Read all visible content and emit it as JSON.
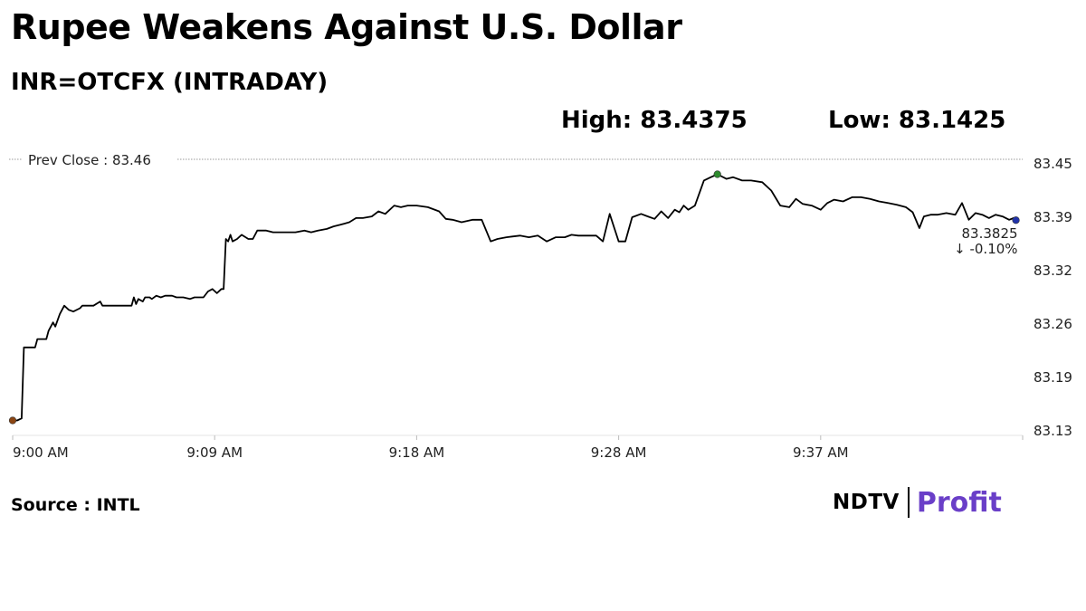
{
  "header": {
    "title": "Rupee Weakens Against U.S. Dollar",
    "subtitle": "INR=OTCFX (INTRADAY)",
    "high_text": "High: 83.4375",
    "low_text": "Low: 83.1425"
  },
  "footer": {
    "source": "Source : INTL",
    "logo_left": "NDTV",
    "logo_right": "Profit"
  },
  "colors": {
    "line": "#000000",
    "start_marker": "#8b4513",
    "high_marker": "#2e8b2e",
    "end_marker": "#2233aa",
    "change_text": "#b03a2e",
    "profit_purple": "#6a3fc8"
  },
  "chart_data": {
    "type": "line",
    "title": "Rupee Weakens Against U.S. Dollar",
    "subtitle": "INR=OTCFX (INTRADAY)",
    "x_unit": "minutes after 9:00 AM",
    "xlim": [
      0,
      45
    ],
    "x_ticks": [
      {
        "value": 0,
        "label": "9:00 AM"
      },
      {
        "value": 9,
        "label": "9:09 AM"
      },
      {
        "value": 18,
        "label": "9:18 AM"
      },
      {
        "value": 27,
        "label": "9:28 AM"
      },
      {
        "value": 36,
        "label": "9:37 AM"
      }
    ],
    "ylim": [
      83.13,
      83.45
    ],
    "y_ticks": [
      {
        "value": 83.45,
        "label": "83.45"
      },
      {
        "value": 83.386,
        "label": "83.39"
      },
      {
        "value": 83.322,
        "label": "83.32"
      },
      {
        "value": 83.258,
        "label": "83.26"
      },
      {
        "value": 83.194,
        "label": "83.19"
      },
      {
        "value": 83.13,
        "label": "83.13"
      }
    ],
    "reference_line": {
      "value": 83.46,
      "label": "Prev Close : 83.46"
    },
    "high": 83.4375,
    "low": 83.1425,
    "last_value_label": "83.3825",
    "change_label": "-0.10%",
    "change_arrow": "↓",
    "series": [
      {
        "x": [
          0,
          0.2,
          0.4,
          0.5,
          1.0,
          1.1,
          1.5,
          1.6,
          1.8,
          1.9,
          2.1,
          2.3,
          2.5,
          2.7,
          3.0,
          3.1,
          3.6,
          3.9,
          4.0,
          4.1,
          4.4,
          4.5,
          5.3,
          5.4,
          5.5,
          5.6,
          5.8,
          5.9,
          6.1,
          6.2,
          6.4,
          6.6,
          6.8,
          7.1,
          7.3,
          7.6,
          7.9,
          8.1,
          8.5,
          8.7,
          8.9,
          9.1,
          9.3,
          9.4,
          9.5,
          9.6,
          9.7,
          9.8,
          10.0,
          10.2,
          10.5,
          10.7,
          10.9,
          11.3,
          11.6,
          12.0,
          12.3,
          12.6,
          13.0,
          13.3,
          13.6,
          14.0,
          14.3,
          14.6,
          15.0,
          15.3,
          15.6,
          16.0,
          16.3,
          16.6,
          17.0,
          17.3,
          17.6,
          17.8,
          18.0,
          18.5,
          19.0,
          19.3,
          19.6,
          20.0,
          20.5,
          20.9,
          21.3,
          21.6,
          22.0,
          22.3,
          22.6,
          23.0,
          23.4,
          23.8,
          24.2,
          24.6,
          24.9,
          25.2,
          25.6,
          26.0,
          26.3,
          26.6,
          27.0,
          27.3,
          27.6,
          28.0,
          28.3,
          28.6,
          28.9,
          29.2,
          29.5,
          29.7,
          29.9,
          30.1,
          30.4,
          30.8,
          31.1,
          31.4,
          31.8,
          32.1,
          32.5,
          32.9,
          33.4,
          33.8,
          34.2,
          34.6,
          34.9,
          35.2,
          35.6,
          36.0,
          36.3,
          36.6,
          37.0,
          37.4,
          37.8,
          38.2,
          38.6,
          39.0,
          39.4,
          39.8,
          40.1,
          40.4,
          40.6,
          40.9,
          41.2,
          41.6,
          42.0,
          42.3,
          42.6,
          42.9,
          43.2,
          43.5,
          43.8,
          44.1,
          44.4,
          44.6,
          44.7
        ],
        "y": [
          83.1425,
          83.1425,
          83.145,
          83.23,
          83.23,
          83.24,
          83.24,
          83.25,
          83.26,
          83.255,
          83.27,
          83.28,
          83.275,
          83.273,
          83.277,
          83.28,
          83.28,
          83.285,
          83.28,
          83.28,
          83.28,
          83.28,
          83.28,
          83.29,
          83.282,
          83.288,
          83.285,
          83.29,
          83.29,
          83.288,
          83.292,
          83.29,
          83.292,
          83.292,
          83.29,
          83.29,
          83.288,
          83.29,
          83.29,
          83.297,
          83.3,
          83.295,
          83.3,
          83.3,
          83.36,
          83.357,
          83.365,
          83.357,
          83.36,
          83.365,
          83.36,
          83.36,
          83.37,
          83.37,
          83.368,
          83.368,
          83.368,
          83.368,
          83.37,
          83.368,
          83.37,
          83.372,
          83.375,
          83.377,
          83.38,
          83.385,
          83.385,
          83.387,
          83.393,
          83.39,
          83.4,
          83.398,
          83.4,
          83.4,
          83.4,
          83.398,
          83.393,
          83.384,
          83.383,
          83.38,
          83.383,
          83.383,
          83.357,
          83.36,
          83.362,
          83.363,
          83.364,
          83.362,
          83.364,
          83.357,
          83.362,
          83.362,
          83.365,
          83.364,
          83.364,
          83.364,
          83.357,
          83.39,
          83.357,
          83.357,
          83.386,
          83.39,
          83.387,
          83.384,
          83.393,
          83.385,
          83.395,
          83.392,
          83.4,
          83.395,
          83.4,
          83.43,
          83.434,
          83.4375,
          83.432,
          83.434,
          83.43,
          83.43,
          83.428,
          83.418,
          83.4,
          83.398,
          83.408,
          83.402,
          83.4,
          83.395,
          83.403,
          83.407,
          83.405,
          83.41,
          83.41,
          83.408,
          83.405,
          83.403,
          83.401,
          83.398,
          83.392,
          83.373,
          83.387,
          83.389,
          83.389,
          83.391,
          83.389,
          83.403,
          83.383,
          83.391,
          83.389,
          83.385,
          83.389,
          83.387,
          83.383,
          83.385,
          83.3825
        ]
      }
    ],
    "markers": [
      {
        "name": "low",
        "x": 0,
        "y": 83.1425
      },
      {
        "name": "high",
        "x": 31.4,
        "y": 83.4375
      },
      {
        "name": "last",
        "x": 44.7,
        "y": 83.3825
      }
    ]
  }
}
